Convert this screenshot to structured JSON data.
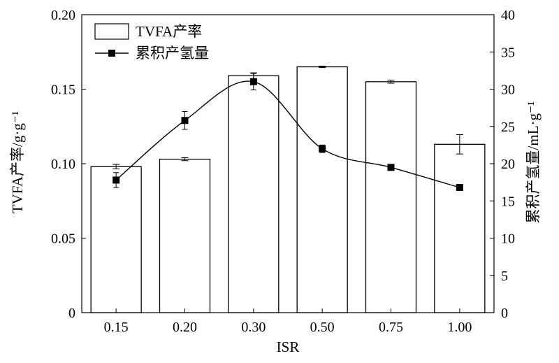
{
  "chart_data": {
    "type": "bar+line",
    "categories": [
      "0.15",
      "0.20",
      "0.30",
      "0.50",
      "0.75",
      "1.00"
    ],
    "xlabel": "ISR",
    "ylabel_left": "TVFA产率/g·g⁻¹",
    "ylabel_right": "累积产氢量/mL·g⁻¹",
    "ylim_left": [
      0,
      0.2
    ],
    "ylim_right": [
      0,
      40
    ],
    "yticks_left": [
      "0",
      "0.05",
      "0.10",
      "0.15",
      "0.20"
    ],
    "yticks_left_values": [
      0,
      0.05,
      0.1,
      0.15,
      0.2
    ],
    "yticks_right": [
      "0",
      "5",
      "10",
      "15",
      "20",
      "25",
      "30",
      "35",
      "40"
    ],
    "yticks_right_values": [
      0,
      5,
      10,
      15,
      20,
      25,
      30,
      35,
      40
    ],
    "series": [
      {
        "name": "TVFA产率",
        "kind": "bar",
        "axis": "left",
        "values": [
          0.098,
          0.103,
          0.159,
          0.165,
          0.155,
          0.113
        ],
        "errors": [
          0.0015,
          0.001,
          0.002,
          0.0005,
          0.001,
          0.0065
        ]
      },
      {
        "name": "累积产氢量",
        "kind": "line",
        "axis": "right",
        "values": [
          17.8,
          25.8,
          31.0,
          22.0,
          19.5,
          16.8
        ],
        "errors": [
          1.0,
          1.2,
          1.1,
          0.5,
          0.2,
          0.1
        ]
      }
    ],
    "legend": {
      "position": "top-left",
      "entries": [
        "TVFA产率",
        "累积产氢量"
      ]
    },
    "grid": false
  }
}
